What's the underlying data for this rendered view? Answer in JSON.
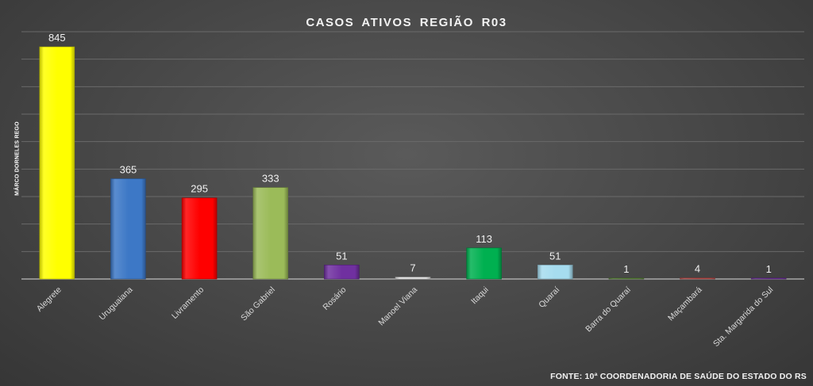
{
  "chart_data": {
    "type": "bar",
    "title": "CASOS  ATIVOS  REGIÃO  R03",
    "categories": [
      "Alegrete",
      "Uruguaiana",
      "Livramento",
      "São Gabriel",
      "Rosário",
      "Manoel Viana",
      "Itaqui",
      "Quaraí",
      "Barra do Quaraí",
      "Maçambará",
      "Sta. Margarida do Sul"
    ],
    "values": [
      845,
      365,
      295,
      333,
      51,
      7,
      113,
      51,
      1,
      4,
      1
    ],
    "colors": [
      "#ffff00",
      "#3d78c6",
      "#ff0000",
      "#9bbb59",
      "#7030a0",
      "#e6e6e6",
      "#00b050",
      "#a6dcef",
      "#5d8a3a",
      "#c0504d",
      "#7030a0"
    ],
    "ylim": [
      0,
      900
    ],
    "grid": true,
    "xlabel": "",
    "ylabel": ""
  },
  "author_label": "MÁRCO DORNELES REGO",
  "source_note": "FONTE: 10ª COORDENADORIA DE SAÚDE DO ESTADO DO RS"
}
